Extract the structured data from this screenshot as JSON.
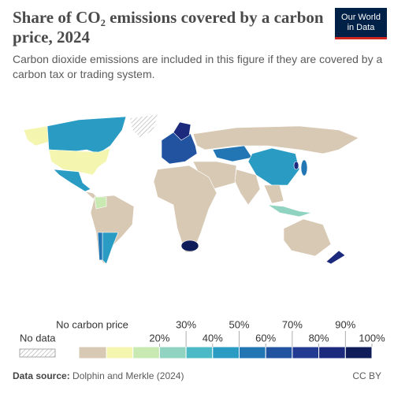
{
  "header": {
    "title": "Share of CO₂ emissions covered by a carbon price, 2024",
    "subtitle": "Carbon dioxide emissions are included in this figure if they are covered by a carbon tax or trading system.",
    "logo": [
      "Our World",
      "in Data"
    ]
  },
  "legend": {
    "no_data": "No data",
    "no_carbon_price": "No carbon price",
    "no_carbon_price_color": "#d8c9b4",
    "range": [
      0,
      100
    ],
    "colors": [
      "#f4f6b0",
      "#c9e9b2",
      "#8fd3c0",
      "#4bbac6",
      "#2a9cc4",
      "#2276b4",
      "#2153a0",
      "#233a92",
      "#1c2a7e",
      "#0e1c5a"
    ],
    "ticks": [
      {
        "value": 20,
        "label": "20%"
      },
      {
        "value": 30,
        "label": "30%"
      },
      {
        "value": 40,
        "label": "40%"
      },
      {
        "value": 50,
        "label": "50%"
      },
      {
        "value": 60,
        "label": "60%"
      },
      {
        "value": 70,
        "label": "70%"
      },
      {
        "value": 80,
        "label": "80%"
      },
      {
        "value": 90,
        "label": "90%"
      },
      {
        "value": 100,
        "label": "100%"
      }
    ]
  },
  "footer": {
    "source_label": "Data source:",
    "source": "Dolphin and Merkle (2024)",
    "license": "CC BY"
  }
}
